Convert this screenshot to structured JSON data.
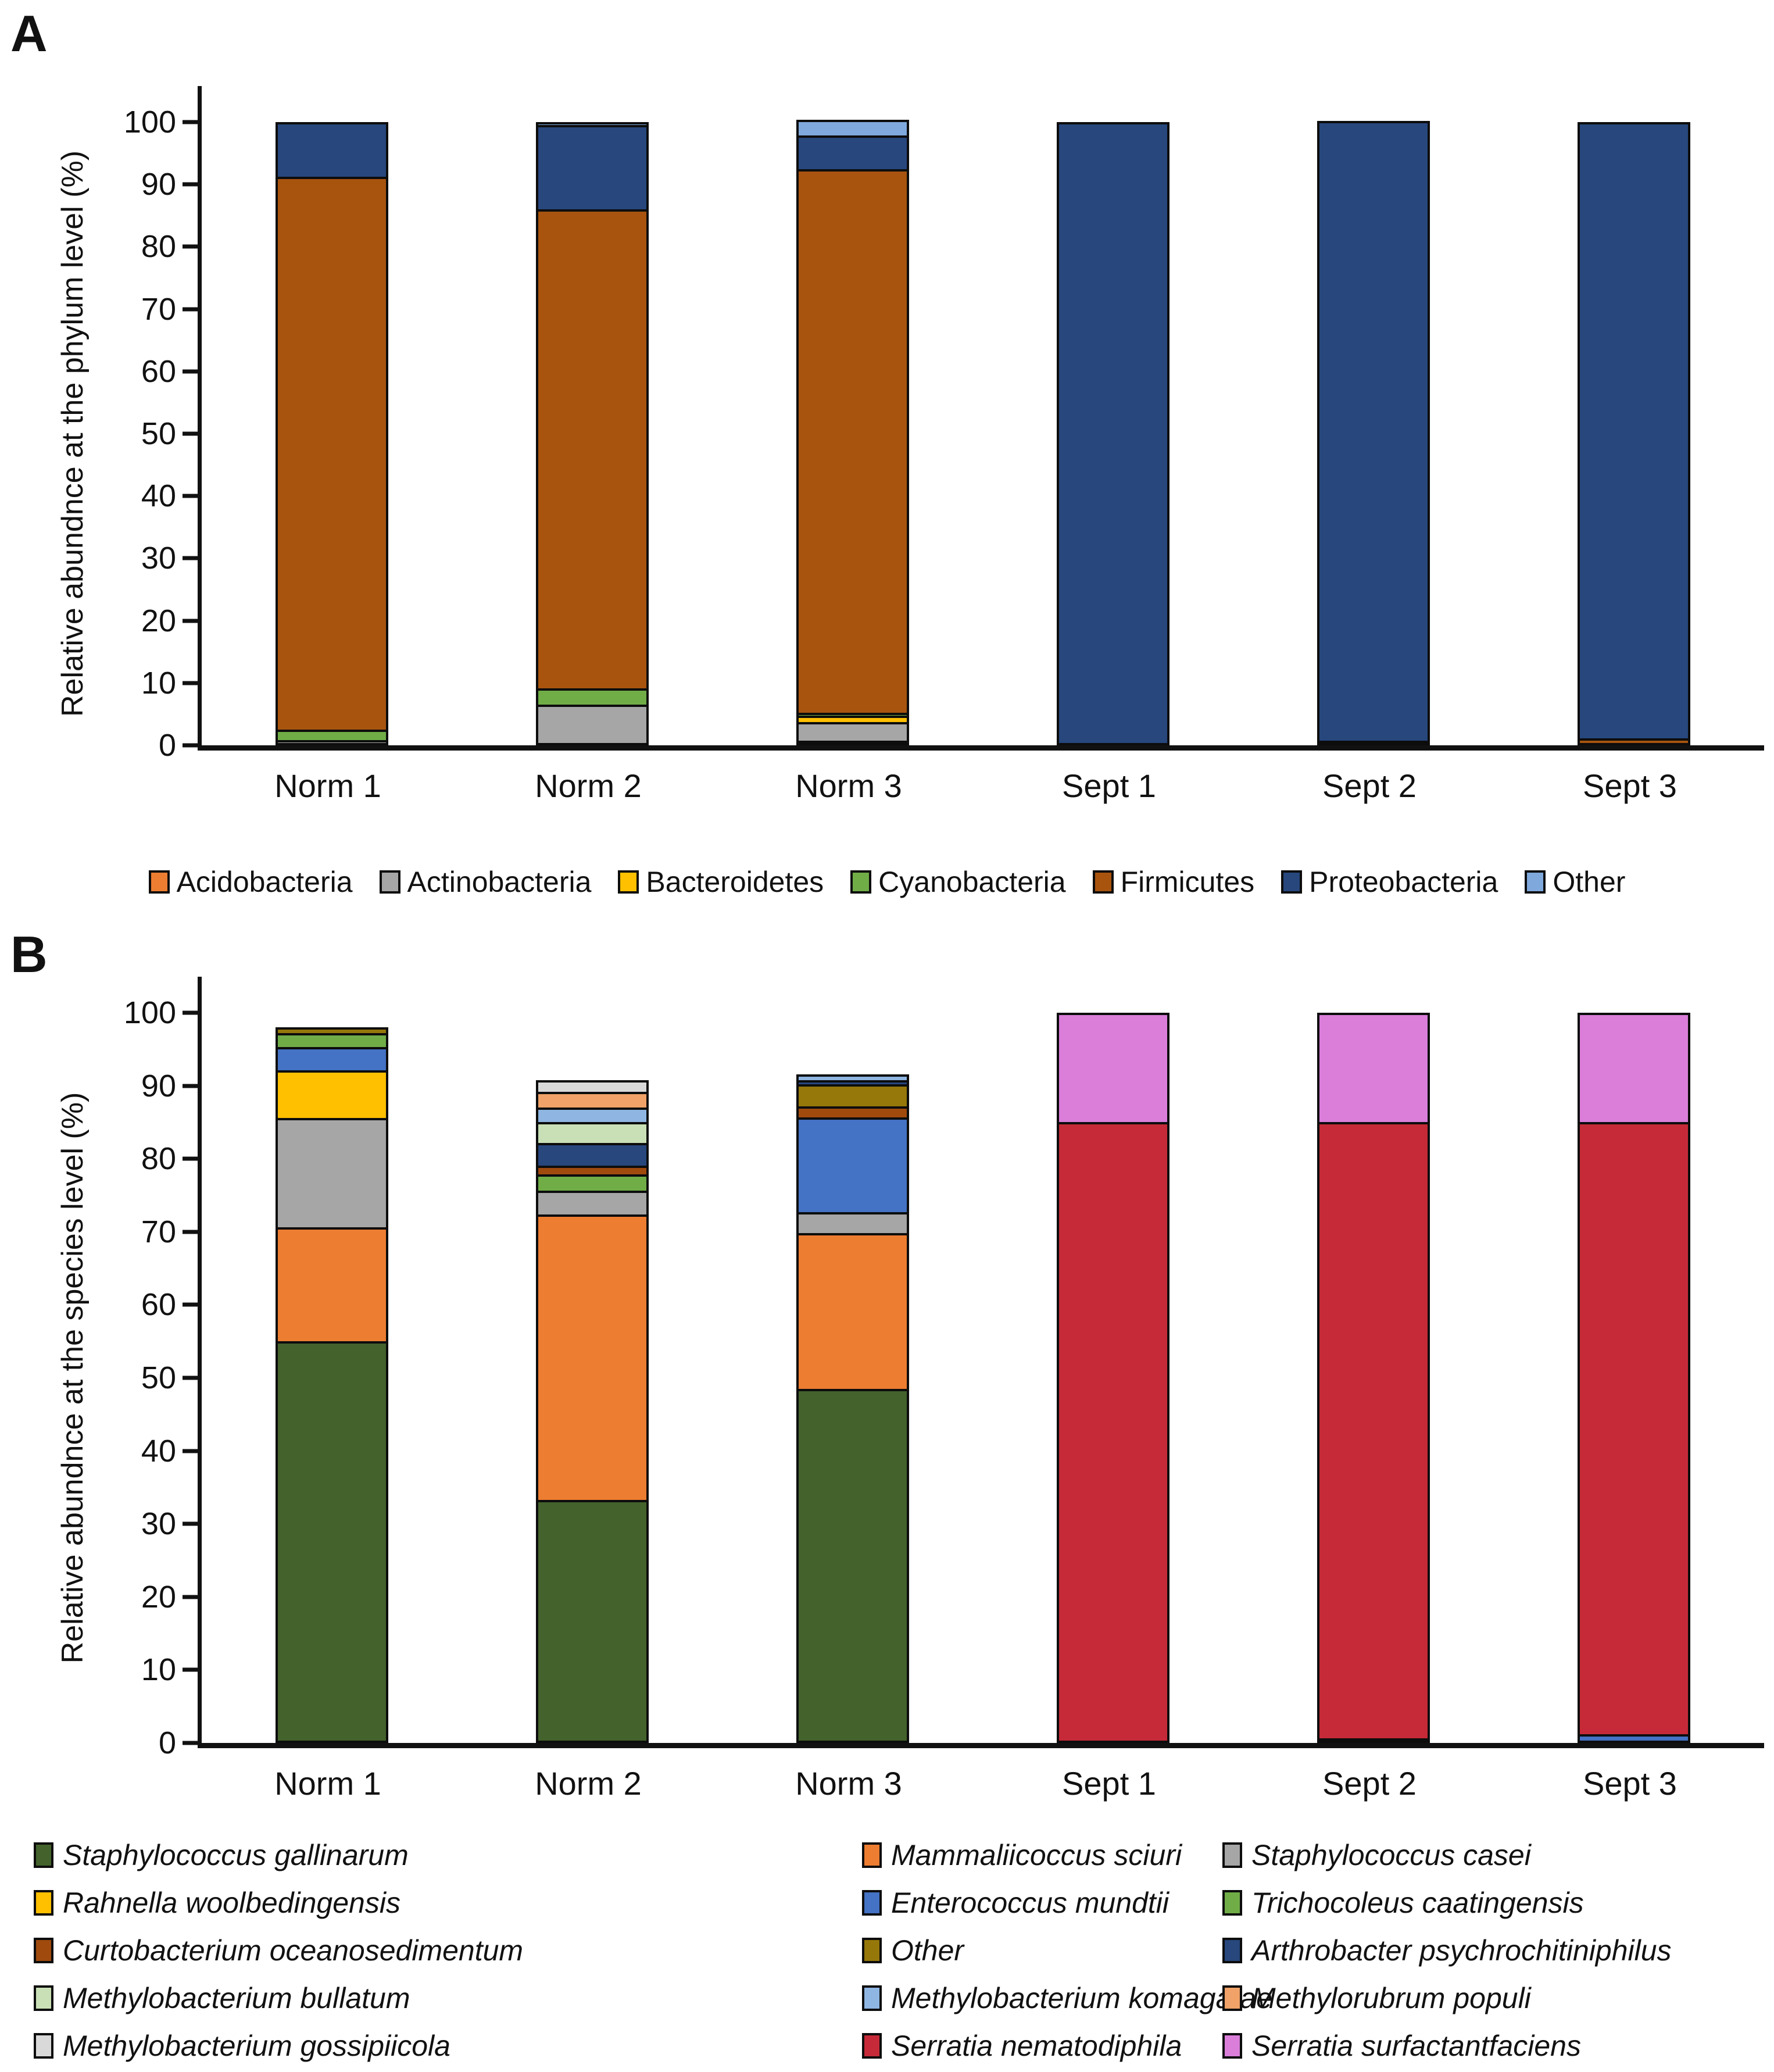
{
  "panels": [
    {
      "label": "A",
      "y_axis_label": "Relative abundnce at the phylum level (%)"
    },
    {
      "label": "B",
      "y_axis_label": "Relative abundnce at the species level (%)"
    }
  ],
  "chart_data": [
    {
      "type": "bar",
      "stacked": true,
      "title": "",
      "xlabel": "",
      "ylabel": "Relative abundnce at the phylum level (%)",
      "ylim": [
        0,
        100
      ],
      "yticks": [
        0,
        10,
        20,
        30,
        40,
        50,
        60,
        70,
        80,
        90,
        100
      ],
      "grid": false,
      "legend_position": "bottom-row",
      "categories": [
        "Norm 1",
        "Norm 2",
        "Norm 3",
        "Sept 1",
        "Sept 2",
        "Sept 3"
      ],
      "series": [
        {
          "name": "Acidobacteria",
          "color": "#ED7D31",
          "values": [
            0,
            0,
            0.4,
            0,
            0,
            0
          ]
        },
        {
          "name": "Actinobacteria",
          "color": "#A6A6A6",
          "values": [
            0.8,
            6.5,
            3.0,
            0,
            0,
            0
          ]
        },
        {
          "name": "Bacteroidetes",
          "color": "#FFC000",
          "values": [
            0,
            0,
            1.0,
            0,
            0,
            0
          ]
        },
        {
          "name": "Cyanobacteria",
          "color": "#70AD47",
          "values": [
            1.7,
            2.6,
            0.5,
            0,
            0,
            0
          ]
        },
        {
          "name": "Firmicutes",
          "color": "#A8540F",
          "values": [
            88.7,
            76.9,
            87.2,
            0,
            0.6,
            1.1
          ]
        },
        {
          "name": "Proteobacteria",
          "color": "#27477D",
          "values": [
            8.8,
            13.5,
            5.4,
            100,
            99.4,
            98.9
          ]
        },
        {
          "name": "Other",
          "color": "#7FA9DC",
          "values": [
            0,
            0.5,
            2.5,
            0,
            0,
            0
          ]
        }
      ]
    },
    {
      "type": "bar",
      "stacked": true,
      "title": "",
      "xlabel": "",
      "ylabel": "Relative abundnce at the species level (%)",
      "ylim": [
        0,
        100
      ],
      "yticks": [
        0,
        10,
        20,
        30,
        40,
        50,
        60,
        70,
        80,
        90,
        100
      ],
      "grid": false,
      "legend_position": "bottom-grid-3col",
      "categories": [
        "Norm 1",
        "Norm 2",
        "Norm 3",
        "Sept 1",
        "Sept 2",
        "Sept 3"
      ],
      "series": [
        {
          "name": "Staphylococcus gallinarum",
          "color": "#44622C",
          "values": [
            55.0,
            33.3,
            48.5,
            0,
            0.6,
            0
          ]
        },
        {
          "name": "Mammaliicoccus sciuri",
          "color": "#ED7D31",
          "values": [
            15.6,
            39.1,
            21.3,
            0,
            0,
            0
          ]
        },
        {
          "name": "Staphylococcus casei",
          "color": "#A6A6A6",
          "values": [
            15.0,
            3.2,
            2.9,
            0,
            0,
            0
          ]
        },
        {
          "name": "Rahnella woolbedingensis",
          "color": "#FFC000",
          "values": [
            6.5,
            0,
            0,
            0,
            0,
            0
          ]
        },
        {
          "name": "Enterococcus mundtii",
          "color": "#4472C4",
          "values": [
            3.2,
            0,
            13.0,
            0,
            0,
            1.2
          ]
        },
        {
          "name": "Trichocoleus caatingensis",
          "color": "#70AD47",
          "values": [
            1.9,
            2.3,
            0,
            0,
            0,
            0
          ]
        },
        {
          "name": "Curtobacterium oceanosedimentum",
          "color": "#A04A0E",
          "values": [
            0,
            1.2,
            1.5,
            0,
            0,
            0
          ]
        },
        {
          "name": "Other",
          "color": "#96780A",
          "values": [
            0.8,
            0,
            3.0,
            0,
            0,
            0
          ]
        },
        {
          "name": "Arthrobacter psychrochitiniphilus",
          "color": "#27477D",
          "values": [
            0,
            3.1,
            0.6,
            0,
            0,
            0
          ]
        },
        {
          "name": "Methylobacterium bullatum",
          "color": "#C9E0B6",
          "values": [
            0,
            2.8,
            0,
            0,
            0,
            0
          ]
        },
        {
          "name": "Methylobacterium komagatae",
          "color": "#8FB6E2",
          "values": [
            0,
            2.0,
            0.8,
            0,
            0,
            0
          ]
        },
        {
          "name": "Methylorubrum populi",
          "color": "#F0A268",
          "values": [
            0,
            2.2,
            0,
            0,
            0,
            0
          ]
        },
        {
          "name": "Methylobacterium gossipiicola",
          "color": "#D9D9D9",
          "values": [
            0,
            1.6,
            0,
            0,
            0,
            0
          ]
        },
        {
          "name": "Serratia nematodiphila",
          "color": "#C62A38",
          "values": [
            0,
            0,
            0,
            85.0,
            84.4,
            83.8
          ]
        },
        {
          "name": "Serratia surfactantfaciens",
          "color": "#DA7EDA",
          "values": [
            0,
            0,
            0,
            15.0,
            15.0,
            15.0
          ]
        }
      ]
    }
  ]
}
